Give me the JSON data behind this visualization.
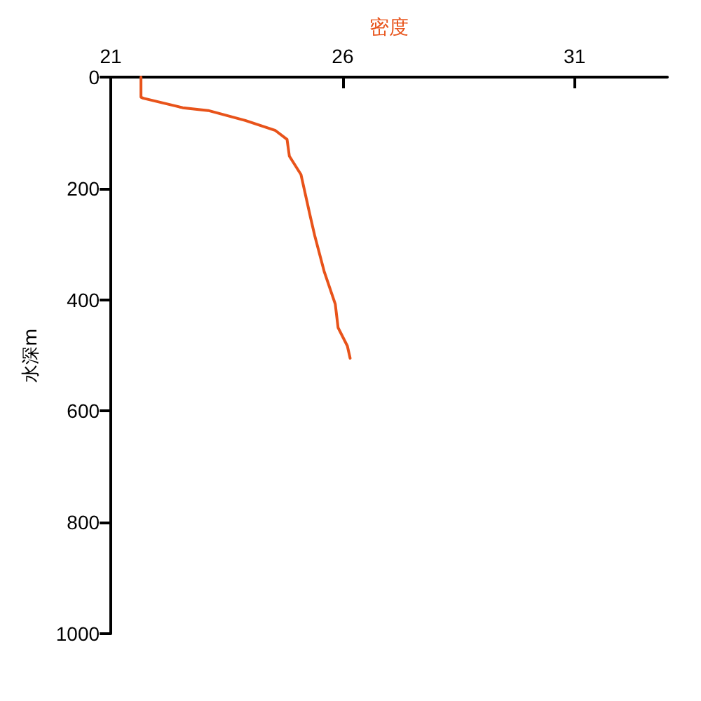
{
  "chart_data": {
    "type": "line",
    "xlabel": "密度",
    "ylabel": "水深m",
    "x": [
      21.65,
      21.65,
      21.7,
      22.55,
      23.1,
      23.9,
      24.55,
      24.8,
      24.85,
      25.1,
      25.3,
      25.4,
      25.6,
      25.84,
      25.9,
      26.1,
      26.16
    ],
    "series": [
      {
        "color": "#e8531a",
        "values": [
          0,
          36,
          38,
          55,
          60,
          78,
          96,
          112,
          142,
          175,
          250,
          286,
          349,
          408,
          450,
          483,
          505
        ]
      }
    ],
    "xlim": [
      21,
      33
    ],
    "xticks": [
      21,
      26,
      31
    ],
    "ylim": [
      1000,
      0
    ],
    "yticks": [
      0,
      200,
      400,
      600,
      800,
      1000
    ],
    "grid": false,
    "marker": "none",
    "line_style": "solid"
  }
}
